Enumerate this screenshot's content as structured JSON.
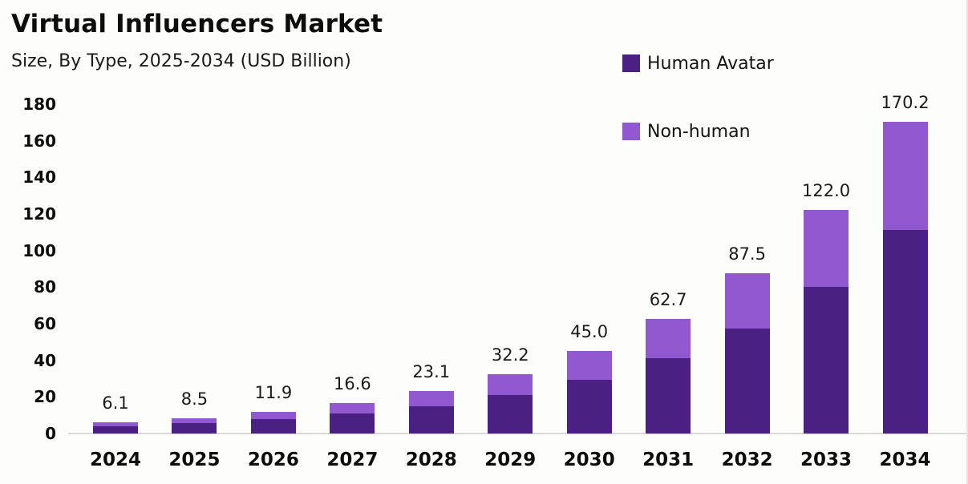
{
  "chart_data": {
    "type": "bar",
    "stacked": true,
    "title": "Virtual Influencers Market",
    "subtitle": "Size, By Type, 2025-2034 (USD Billion)",
    "categories": [
      "2024",
      "2025",
      "2026",
      "2027",
      "2028",
      "2029",
      "2030",
      "2031",
      "2032",
      "2033",
      "2034"
    ],
    "series": [
      {
        "name": "Human Avatar",
        "color": "#4a2083",
        "values": [
          4.0,
          5.6,
          7.8,
          10.9,
          15.1,
          21.1,
          29.5,
          41.0,
          57.3,
          80.0,
          111.3
        ]
      },
      {
        "name": "Non-human",
        "color": "#9158d0",
        "values": [
          2.1,
          2.9,
          4.1,
          5.7,
          8.0,
          11.1,
          15.5,
          21.7,
          30.2,
          42.0,
          58.9
        ]
      }
    ],
    "totals": [
      6.1,
      8.5,
      11.9,
      16.6,
      23.1,
      32.2,
      45.0,
      62.7,
      87.5,
      122.0,
      170.2
    ],
    "total_labels": [
      "6.1",
      "8.5",
      "11.9",
      "16.6",
      "23.1",
      "32.2",
      "45.0",
      "62.7",
      "87.5",
      "122.0",
      "170.2"
    ],
    "y_ticks": [
      0,
      20,
      40,
      60,
      80,
      100,
      120,
      140,
      160,
      180
    ],
    "y_tick_labels": [
      "0",
      "20",
      "40",
      "60",
      "80",
      "100",
      "120",
      "140",
      "160",
      "180"
    ],
    "ylim": [
      0,
      180
    ],
    "grid": false,
    "legend_position": "top-right",
    "xlabel": "",
    "ylabel": ""
  },
  "colors": {
    "background": "#fdfdfb",
    "axis_line": "#d9d9d9",
    "text": "#0d0d0d"
  }
}
